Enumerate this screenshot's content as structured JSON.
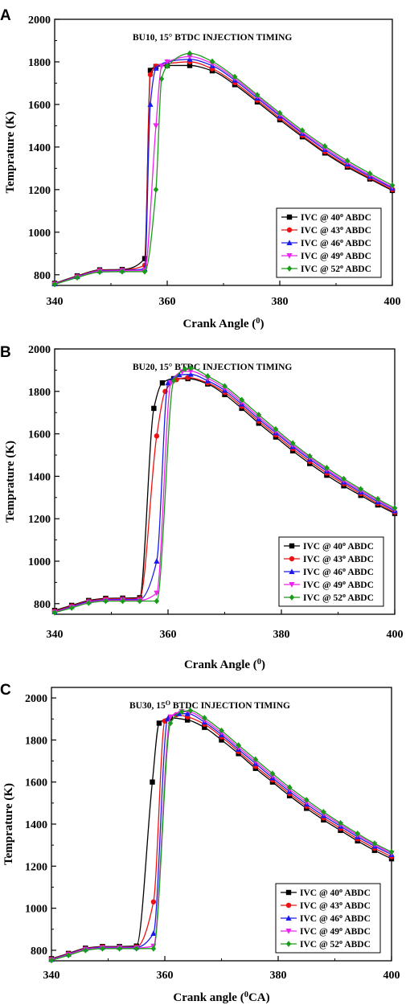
{
  "chart_data": [
    {
      "type": "line",
      "panel_label": "A",
      "title": "BU10, 15° BTDC  INJECTION TIMING",
      "xlabel": "Crank Angle (",
      "xlabel_sup": "0",
      "xlabel_end": ")",
      "ylabel": "Temprature (K)",
      "xlim": [
        340,
        400
      ],
      "ylim": [
        750,
        2000
      ],
      "xticks": [
        "340",
        "360",
        "380",
        "400"
      ],
      "yticks": [
        "800",
        "1000",
        "1200",
        "1400",
        "1600",
        "1800",
        "2000"
      ],
      "legend_position": "lower-right",
      "series": [
        {
          "name": "IVC @ 40",
          "name_sup": "o",
          "name_end": " ABDC",
          "color": "#000000",
          "marker": "square",
          "x": [
            340,
            344,
            348,
            352,
            356,
            357,
            358,
            360,
            364,
            368,
            372,
            376,
            380,
            384,
            388,
            392,
            396,
            400
          ],
          "y": [
            760,
            795,
            823,
            825,
            876,
            1760,
            1778,
            1783,
            1783,
            1758,
            1693,
            1612,
            1528,
            1448,
            1372,
            1306,
            1250,
            1196
          ]
        },
        {
          "name": "IVC @ 43",
          "name_sup": "o",
          "name_end": " ABDC",
          "color": "#ee1111",
          "marker": "circle",
          "x": [
            340,
            344,
            348,
            352,
            356,
            357,
            358,
            360,
            364,
            368,
            372,
            376,
            380,
            384,
            388,
            392,
            396,
            400
          ],
          "y": [
            758,
            793,
            821,
            823,
            845,
            1740,
            1780,
            1792,
            1800,
            1768,
            1702,
            1620,
            1536,
            1455,
            1378,
            1312,
            1255,
            1200
          ]
        },
        {
          "name": "IVC @ 46",
          "name_sup": "o",
          "name_end": " ABDC",
          "color": "#1a1aee",
          "marker": "triangle-up",
          "x": [
            340,
            344,
            348,
            352,
            356,
            357,
            358,
            360,
            364,
            368,
            372,
            376,
            380,
            384,
            388,
            392,
            396,
            400
          ],
          "y": [
            757,
            791,
            819,
            821,
            828,
            1600,
            1770,
            1800,
            1812,
            1782,
            1714,
            1630,
            1546,
            1464,
            1388,
            1320,
            1262,
            1207
          ]
        },
        {
          "name": "IVC @ 49",
          "name_sup": "o",
          "name_end": " ABDC",
          "color": "#ee22ee",
          "marker": "triangle-down",
          "x": [
            340,
            344,
            348,
            352,
            356,
            358,
            359,
            360,
            364,
            368,
            372,
            376,
            380,
            384,
            388,
            392,
            396,
            400
          ],
          "y": [
            756,
            789,
            817,
            819,
            822,
            1500,
            1780,
            1800,
            1825,
            1792,
            1722,
            1638,
            1552,
            1470,
            1396,
            1327,
            1268,
            1212
          ]
        },
        {
          "name": "IVC @ 52",
          "name_sup": "o",
          "name_end": " ABDC",
          "color": "#1a9a1a",
          "marker": "diamond",
          "x": [
            340,
            344,
            348,
            352,
            356,
            358,
            359,
            360,
            364,
            368,
            372,
            376,
            380,
            384,
            388,
            392,
            396,
            400
          ],
          "y": [
            755,
            787,
            813,
            815,
            815,
            1200,
            1720,
            1780,
            1840,
            1802,
            1730,
            1645,
            1560,
            1478,
            1404,
            1336,
            1276,
            1220
          ]
        }
      ]
    },
    {
      "type": "line",
      "panel_label": "B",
      "title": "BU20, 15° BTDC  INJECTION TIMING",
      "xlabel": "Crank Angle (",
      "xlabel_sup": "0",
      "xlabel_end": ")",
      "ylabel": "Temprature (K)",
      "xlim": [
        340,
        400
      ],
      "ylim": [
        750,
        2000
      ],
      "xticks": [
        "340",
        "360",
        "380",
        "400"
      ],
      "yticks": [
        "800",
        "1000",
        "1200",
        "1400",
        "1600",
        "1800",
        "2000"
      ],
      "legend_position": "lower-right",
      "series": [
        {
          "name": "IVC @ 40",
          "name_sup": "o",
          "name_end": " ABDC",
          "color": "#000000",
          "marker": "square",
          "x": [
            340,
            343,
            346,
            349,
            352,
            355,
            357.5,
            359,
            361,
            363.5,
            367,
            370,
            373,
            376,
            379,
            382,
            385,
            388,
            391,
            394,
            397,
            400
          ],
          "y": [
            768,
            792,
            815,
            825,
            826,
            828,
            1720,
            1840,
            1860,
            1860,
            1835,
            1785,
            1720,
            1650,
            1585,
            1520,
            1460,
            1405,
            1355,
            1310,
            1265,
            1225
          ]
        },
        {
          "name": "IVC @ 43",
          "name_sup": "o",
          "name_end": " ABDC",
          "color": "#ee1111",
          "marker": "circle",
          "x": [
            340,
            343,
            346,
            349,
            352,
            355,
            358,
            359.5,
            361.5,
            363.5,
            367,
            370,
            373,
            376,
            379,
            382,
            385,
            388,
            391,
            394,
            397,
            400
          ],
          "y": [
            765,
            789,
            812,
            822,
            823,
            824,
            1590,
            1800,
            1855,
            1865,
            1840,
            1795,
            1730,
            1660,
            1595,
            1530,
            1470,
            1415,
            1365,
            1318,
            1272,
            1230
          ]
        },
        {
          "name": "IVC @ 46",
          "name_sup": "o",
          "name_end": " ABDC",
          "color": "#1a1aee",
          "marker": "triangle-up",
          "x": [
            340,
            343,
            346,
            349,
            352,
            355,
            358,
            360,
            362,
            364,
            367,
            370,
            373,
            376,
            379,
            382,
            385,
            388,
            391,
            394,
            397,
            400
          ],
          "y": [
            762,
            786,
            809,
            819,
            820,
            820,
            1000,
            1840,
            1878,
            1880,
            1850,
            1805,
            1740,
            1670,
            1605,
            1540,
            1480,
            1425,
            1373,
            1326,
            1280,
            1237
          ]
        },
        {
          "name": "IVC @ 49",
          "name_sup": "o",
          "name_end": " ABDC",
          "color": "#ee22ee",
          "marker": "triangle-down",
          "x": [
            340,
            343,
            346,
            349,
            352,
            355,
            358,
            360.5,
            362.5,
            364,
            367,
            370,
            373,
            376,
            379,
            382,
            385,
            388,
            391,
            394,
            397,
            400
          ],
          "y": [
            760,
            783,
            806,
            816,
            816,
            816,
            850,
            1840,
            1893,
            1895,
            1862,
            1815,
            1750,
            1680,
            1613,
            1548,
            1488,
            1432,
            1380,
            1333,
            1287,
            1243
          ]
        },
        {
          "name": "IVC @ 52",
          "name_sup": "o",
          "name_end": " ABDC",
          "color": "#1a9a1a",
          "marker": "diamond",
          "x": [
            340,
            343,
            346,
            349,
            352,
            355,
            358,
            361,
            363,
            364,
            367,
            370,
            373,
            376,
            379,
            382,
            385,
            388,
            391,
            394,
            397,
            400
          ],
          "y": [
            758,
            780,
            803,
            812,
            812,
            812,
            812,
            1850,
            1905,
            1910,
            1872,
            1825,
            1760,
            1690,
            1622,
            1556,
            1495,
            1440,
            1388,
            1340,
            1293,
            1250
          ]
        }
      ]
    },
    {
      "type": "line",
      "panel_label": "C",
      "title": "BU30, 15",
      "title_sup": "O",
      "title_end": " BTDC  INJECTION TIMING",
      "xlabel": "Crank angle (",
      "xlabel_sup": "0",
      "xlabel_end": "CA)",
      "ylabel": "Temprature (K)",
      "xlim": [
        340,
        400
      ],
      "ylim": [
        750,
        2050
      ],
      "xticks": [
        "340",
        "360",
        "380",
        "400"
      ],
      "yticks": [
        "800",
        "1000",
        "1200",
        "1400",
        "1600",
        "1800",
        "2000"
      ],
      "legend_position": "lower-right",
      "series": [
        {
          "name": "IVC @ 40",
          "name_sup": "o",
          "name_end": " ABDC",
          "color": "#000000",
          "marker": "square",
          "x": [
            340,
            343,
            346,
            349,
            352,
            355,
            357.8,
            359,
            361,
            364,
            367,
            370,
            373,
            376,
            379,
            382,
            385,
            388,
            391,
            394,
            397,
            400
          ],
          "y": [
            760,
            785,
            810,
            818,
            818,
            820,
            1600,
            1880,
            1905,
            1895,
            1860,
            1800,
            1735,
            1665,
            1600,
            1535,
            1475,
            1420,
            1370,
            1320,
            1275,
            1235
          ]
        },
        {
          "name": "IVC @ 43",
          "name_sup": "o",
          "name_end": " ABDC",
          "color": "#ee1111",
          "marker": "circle",
          "x": [
            340,
            343,
            346,
            349,
            352,
            355,
            358,
            360,
            362,
            364,
            367,
            370,
            373,
            376,
            379,
            382,
            385,
            388,
            391,
            394,
            397,
            400
          ],
          "y": [
            758,
            783,
            808,
            816,
            816,
            816,
            1030,
            1890,
            1920,
            1910,
            1875,
            1815,
            1745,
            1675,
            1610,
            1545,
            1485,
            1430,
            1380,
            1330,
            1285,
            1245
          ]
        },
        {
          "name": "IVC @ 46",
          "name_sup": "o",
          "name_end": " ABDC",
          "color": "#1a1aee",
          "marker": "triangle-up",
          "x": [
            340,
            343,
            346,
            349,
            352,
            355,
            358,
            360.5,
            362.5,
            364,
            367,
            370,
            373,
            376,
            379,
            382,
            385,
            388,
            391,
            394,
            397,
            400
          ],
          "y": [
            756,
            781,
            806,
            814,
            814,
            814,
            880,
            1900,
            1925,
            1925,
            1885,
            1825,
            1755,
            1688,
            1620,
            1555,
            1495,
            1440,
            1390,
            1340,
            1295,
            1255
          ]
        },
        {
          "name": "IVC @ 49",
          "name_sup": "o",
          "name_end": " ABDC",
          "color": "#ee22ee",
          "marker": "triangle-down",
          "x": [
            340,
            343,
            346,
            349,
            352,
            355,
            358,
            361,
            363,
            364.5,
            367,
            370,
            373,
            376,
            379,
            382,
            385,
            388,
            391,
            394,
            397,
            400
          ],
          "y": [
            754,
            779,
            804,
            811,
            811,
            811,
            820,
            1910,
            1935,
            1932,
            1895,
            1835,
            1765,
            1698,
            1630,
            1565,
            1505,
            1450,
            1398,
            1348,
            1302,
            1262
          ]
        },
        {
          "name": "IVC @ 52",
          "name_sup": "o",
          "name_end": " ABDC",
          "color": "#1a9a1a",
          "marker": "diamond",
          "x": [
            340,
            343,
            346,
            349,
            352,
            355,
            358,
            361,
            363,
            364.5,
            367,
            370,
            373,
            376,
            379,
            382,
            385,
            388,
            391,
            394,
            397,
            400
          ],
          "y": [
            752,
            776,
            800,
            808,
            808,
            808,
            808,
            1880,
            1935,
            1940,
            1905,
            1845,
            1775,
            1708,
            1640,
            1575,
            1515,
            1458,
            1405,
            1355,
            1308,
            1268
          ]
        }
      ]
    }
  ]
}
